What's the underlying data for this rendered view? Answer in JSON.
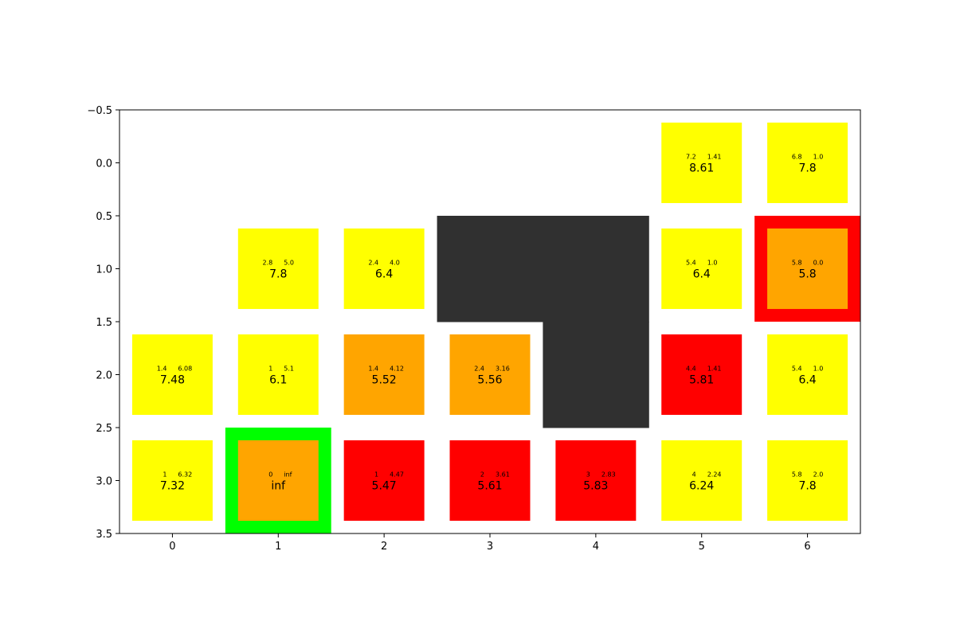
{
  "chart_data": {
    "type": "heatmap",
    "title": "",
    "xlabel": "",
    "ylabel": "",
    "xlim": [
      -0.5,
      6.5
    ],
    "ylim": [
      3.5,
      -0.5
    ],
    "y_inverted": true,
    "grid": false,
    "x_ticks": [
      0,
      1,
      2,
      3,
      4,
      5,
      6
    ],
    "x_tick_labels": [
      "0",
      "1",
      "2",
      "3",
      "4",
      "5",
      "6"
    ],
    "y_ticks": [
      -0.5,
      0.0,
      0.5,
      1.0,
      1.5,
      2.0,
      2.5,
      3.0,
      3.5
    ],
    "y_tick_labels": [
      "−0.5",
      "0.0",
      "0.5",
      "1.0",
      "1.5",
      "2.0",
      "2.5",
      "3.0",
      "3.5"
    ],
    "colors": {
      "yellow": "#ffff00",
      "orange": "#ffa500",
      "red": "#ff0000",
      "green": "#00ff00",
      "obstacle": "#303030"
    },
    "obstacles": [
      {
        "row": 1,
        "col": 3
      },
      {
        "row": 1,
        "col": 4
      },
      {
        "row": 2,
        "col": 4
      }
    ],
    "highlights": [
      {
        "row": 3,
        "col": 1,
        "color": "green"
      },
      {
        "row": 1,
        "col": 6,
        "color": "red"
      }
    ],
    "cells": [
      {
        "row": 0,
        "col": 5,
        "color": "yellow",
        "g": "7.2",
        "h": "1.41",
        "f": "8.61"
      },
      {
        "row": 0,
        "col": 6,
        "color": "yellow",
        "g": "6.8",
        "h": "1.0",
        "f": "7.8"
      },
      {
        "row": 1,
        "col": 1,
        "color": "yellow",
        "g": "2.8",
        "h": "5.0",
        "f": "7.8"
      },
      {
        "row": 1,
        "col": 2,
        "color": "yellow",
        "g": "2.4",
        "h": "4.0",
        "f": "6.4"
      },
      {
        "row": 1,
        "col": 5,
        "color": "yellow",
        "g": "5.4",
        "h": "1.0",
        "f": "6.4"
      },
      {
        "row": 1,
        "col": 6,
        "color": "orange",
        "g": "5.8",
        "h": "0.0",
        "f": "5.8"
      },
      {
        "row": 2,
        "col": 0,
        "color": "yellow",
        "g": "1.4",
        "h": "6.08",
        "f": "7.48"
      },
      {
        "row": 2,
        "col": 1,
        "color": "yellow",
        "g": "1",
        "h": "5.1",
        "f": "6.1"
      },
      {
        "row": 2,
        "col": 2,
        "color": "orange",
        "g": "1.4",
        "h": "4.12",
        "f": "5.52"
      },
      {
        "row": 2,
        "col": 3,
        "color": "orange",
        "g": "2.4",
        "h": "3.16",
        "f": "5.56"
      },
      {
        "row": 2,
        "col": 5,
        "color": "red",
        "g": "4.4",
        "h": "1.41",
        "f": "5.81"
      },
      {
        "row": 2,
        "col": 6,
        "color": "yellow",
        "g": "5.4",
        "h": "1.0",
        "f": "6.4"
      },
      {
        "row": 3,
        "col": 0,
        "color": "yellow",
        "g": "1",
        "h": "6.32",
        "f": "7.32"
      },
      {
        "row": 3,
        "col": 1,
        "color": "orange",
        "g": "0",
        "h": "inf",
        "f": "inf"
      },
      {
        "row": 3,
        "col": 2,
        "color": "red",
        "g": "1",
        "h": "4.47",
        "f": "5.47"
      },
      {
        "row": 3,
        "col": 3,
        "color": "red",
        "g": "2",
        "h": "3.61",
        "f": "5.61"
      },
      {
        "row": 3,
        "col": 4,
        "color": "red",
        "g": "3",
        "h": "2.83",
        "f": "5.83"
      },
      {
        "row": 3,
        "col": 5,
        "color": "yellow",
        "g": "4",
        "h": "2.24",
        "f": "6.24"
      },
      {
        "row": 3,
        "col": 6,
        "color": "yellow",
        "g": "5.8",
        "h": "2.0",
        "f": "7.8"
      }
    ]
  }
}
